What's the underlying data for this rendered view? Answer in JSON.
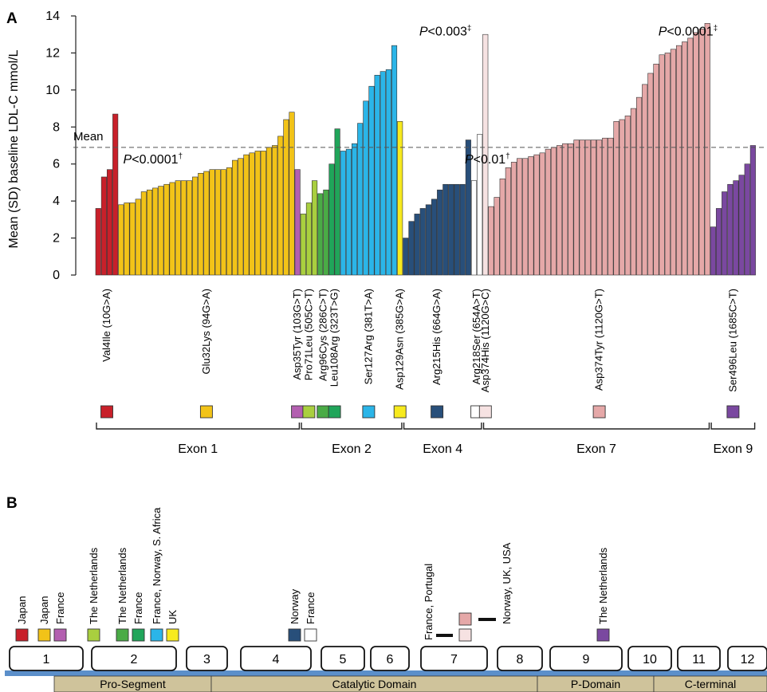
{
  "panel_a_label": "A",
  "panel_b_label": "B",
  "mean_label": "Mean",
  "chart_data": [
    {
      "type": "bar",
      "ylabel": "Mean (SD) baseline LDL-C mmol/L",
      "xlabel": "",
      "ylim": [
        0,
        14
      ],
      "yticks": [
        "0",
        "2",
        "4",
        "6",
        "8",
        "10",
        "12",
        "14"
      ],
      "grid": false,
      "mean_line": 6.9,
      "series": [
        {
          "mutation": "Val4Ile (10G>A)",
          "color": "#c8202a",
          "values": [
            3.6,
            5.3,
            5.7,
            8.7
          ]
        },
        {
          "mutation": "Glu32Lys (94G>A)",
          "color": "#f2c318",
          "values": [
            3.8,
            3.9,
            3.9,
            4.1,
            4.5,
            4.6,
            4.7,
            4.8,
            4.9,
            5.0,
            5.1,
            5.1,
            5.1,
            5.3,
            5.5,
            5.6,
            5.7,
            5.7,
            5.7,
            5.8,
            6.2,
            6.3,
            6.5,
            6.6,
            6.7,
            6.7,
            6.9,
            7.0,
            7.5,
            8.4,
            8.8
          ]
        },
        {
          "mutation": "Asp35Tyr (103G>T)",
          "color": "#b35fb0",
          "values": [
            5.7
          ]
        },
        {
          "mutation": "Pro71Leu (505C>T)",
          "color": "#a9cf3f",
          "values": [
            3.3,
            3.9,
            5.1
          ]
        },
        {
          "mutation": "Arg96Cys (286C>T)",
          "color": "#4aab46",
          "values": [
            4.4,
            4.6
          ]
        },
        {
          "mutation": "Leu108Arg (323T>G)",
          "color": "#20a55a",
          "values": [
            6.0,
            7.9
          ]
        },
        {
          "mutation": "Ser127Arg (381T>A)",
          "color": "#2bb5e8",
          "values": [
            6.7,
            6.8,
            7.1,
            8.2,
            9.4,
            10.2,
            10.8,
            11.0,
            11.1,
            12.4
          ]
        },
        {
          "mutation": "Asp129Asn (385G>A)",
          "color": "#f7ea1e",
          "values": [
            8.3
          ]
        },
        {
          "mutation": "Arg215His (664G>A)",
          "color": "#284f7a",
          "values": [
            2.0,
            2.9,
            3.3,
            3.6,
            3.8,
            4.1,
            4.6,
            4.9,
            4.9,
            4.9,
            4.9,
            7.3
          ]
        },
        {
          "mutation": "Arg218Ser (654A>T)",
          "color": "#ffffff",
          "values": [
            5.1,
            7.6
          ]
        },
        {
          "mutation": "Asp374His (1120G>C)",
          "color": "#f6e2e2",
          "values": [
            13.0
          ]
        },
        {
          "mutation": "Asp374Tyr (1120G>T)",
          "color": "#e5a8a8",
          "values": [
            3.7,
            4.2,
            5.2,
            5.8,
            6.1,
            6.3,
            6.3,
            6.4,
            6.5,
            6.6,
            6.8,
            6.9,
            7.0,
            7.1,
            7.1,
            7.3,
            7.3,
            7.3,
            7.3,
            7.3,
            7.4,
            7.4,
            8.3,
            8.4,
            8.6,
            9.0,
            9.6,
            10.3,
            10.9,
            11.4,
            11.9,
            12.0,
            12.2,
            12.4,
            12.6,
            12.8,
            13.1,
            13.3,
            13.6
          ]
        },
        {
          "mutation": "Ser496Leu (1685C>T)",
          "color": "#7a48a0",
          "values": [
            2.6,
            3.6,
            4.5,
            4.9,
            5.1,
            5.4,
            6.0,
            7.0
          ]
        }
      ],
      "annotations": [
        {
          "text": "P<0.0001",
          "sup": "†",
          "y": 6.3,
          "after_bar": 4
        },
        {
          "text": "P<0.003",
          "sup": "‡",
          "y": 13.2,
          "after_bar": 56
        },
        {
          "text": "P<0.01",
          "sup": "†",
          "y": 6.3,
          "after_bar": 64
        },
        {
          "text": "P<0.0001",
          "sup": "‡",
          "y": 13.2,
          "after_bar": 98
        }
      ],
      "exons": [
        {
          "label": "Exon 1",
          "first_bar": 0,
          "last_bar": 35
        },
        {
          "label": "Exon 2",
          "first_bar": 36,
          "last_bar": 53
        },
        {
          "label": "Exon 4",
          "first_bar": 54,
          "last_bar": 67
        },
        {
          "label": "Exon 7",
          "first_bar": 68,
          "last_bar": 107
        },
        {
          "label": "Exon 9",
          "first_bar": 108,
          "last_bar": 115
        }
      ]
    },
    {
      "type": "diagram",
      "exon_boxes": [
        "1",
        "2",
        "3",
        "4",
        "5",
        "6",
        "7",
        "8",
        "9",
        "10",
        "11",
        "12"
      ],
      "domains": [
        "Pro-Segment",
        "Catalytic Domain",
        "P-Domain",
        "C-terminal"
      ],
      "domain_color": "#cfc39b",
      "axis_color": "#5b8fca",
      "country_groups": [
        {
          "countries": "Japan",
          "color": "#c8202a",
          "exon": "1"
        },
        {
          "countries": "Japan",
          "color": "#f2c318",
          "exon": "1"
        },
        {
          "countries": "France",
          "color": "#b35fb0",
          "exon": "1"
        },
        {
          "countries": "The Netherlands",
          "color": "#a9cf3f",
          "exon": "2"
        },
        {
          "countries": "The Netherlands",
          "color": "#4aab46",
          "exon": "2"
        },
        {
          "countries": "France",
          "color": "#20a55a",
          "exon": "2"
        },
        {
          "countries": "France, Norway, S. Africa",
          "color": "#2bb5e8",
          "exon": "2"
        },
        {
          "countries": "UK",
          "color": "#f7ea1e",
          "exon": "2"
        },
        {
          "countries": "Norway",
          "color": "#284f7a",
          "exon": "4"
        },
        {
          "countries": "France",
          "color": "#ffffff",
          "exon": "4"
        },
        {
          "countries": "France, Portugal",
          "color": "#f6e2e2",
          "exon": "7"
        },
        {
          "countries": "Norway, UK, USA",
          "color": "#e5a8a8",
          "exon": "7"
        },
        {
          "countries": "The Netherlands",
          "color": "#7a48a0",
          "exon": "9"
        }
      ]
    }
  ]
}
